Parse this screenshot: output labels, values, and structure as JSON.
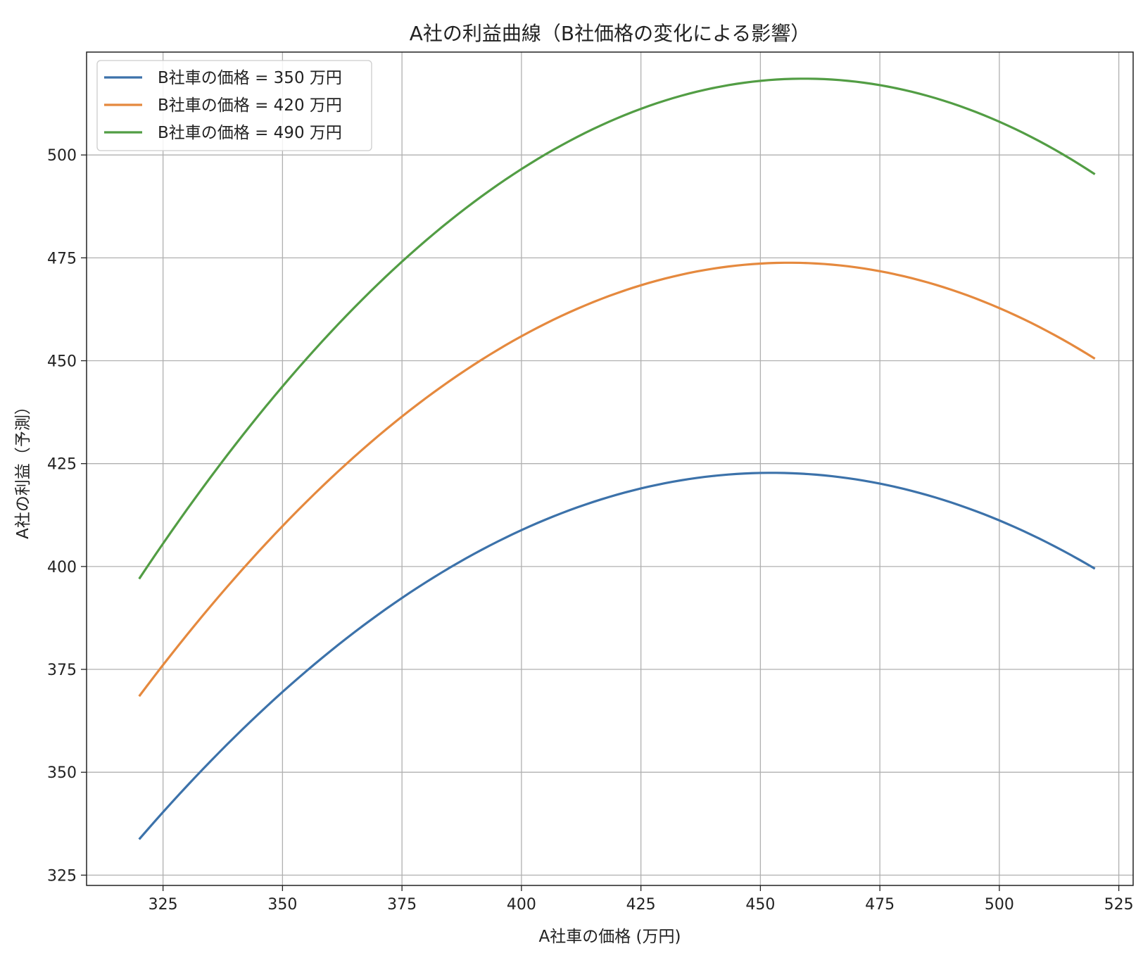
{
  "chart_data": {
    "type": "line",
    "title": "A社の利益曲線（B社価格の変化による影響）",
    "xlabel": "A社車の価格 (万円)",
    "ylabel": "A社の利益（予測）",
    "xlim": [
      309,
      528
    ],
    "ylim": [
      322.5,
      525
    ],
    "xticks": [
      325,
      350,
      375,
      400,
      425,
      450,
      475,
      500,
      525
    ],
    "yticks": [
      325,
      350,
      375,
      400,
      425,
      450,
      475,
      500
    ],
    "grid": true,
    "legend_position": "top-left",
    "x_range": [
      320,
      520
    ],
    "series": [
      {
        "name": "B社車の価格 = 350 万円",
        "color": "#3c72aa",
        "x": [
          320,
          325,
          350,
          375,
          400,
          425,
          447,
          475,
          500,
          520
        ],
        "y": [
          331.5,
          340,
          371,
          395,
          410.3,
          418.5,
          420.8,
          417.5,
          410.5,
          402
        ]
      },
      {
        "name": "B社車の価格 = 420 万円",
        "color": "#e5893e",
        "x": [
          320,
          325,
          350,
          375,
          400,
          425,
          451,
          475,
          500,
          520
        ],
        "y": [
          366,
          375,
          412.5,
          439.5,
          457.5,
          467.5,
          471.3,
          469,
          462,
          453.5
        ]
      },
      {
        "name": "B社車の価格 = 490 万円",
        "color": "#529d44",
        "x": [
          320,
          325,
          350,
          375,
          400,
          425,
          455.5,
          475,
          500,
          520
        ],
        "y": [
          395,
          404,
          446,
          477.5,
          498.5,
          510.5,
          515.5,
          514,
          507.5,
          498.5
        ]
      }
    ]
  }
}
